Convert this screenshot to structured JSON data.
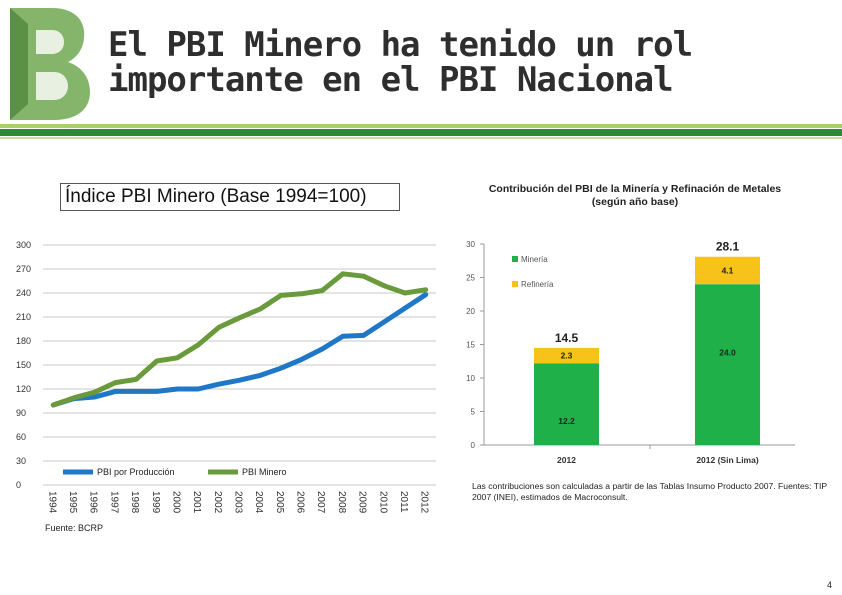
{
  "header": {
    "title_line1": "El PBI Minero ha tenido un rol",
    "title_line2": "importante en el PBI Nacional"
  },
  "colors": {
    "accent_green": "#7ab648",
    "dark_green": "#3d7a2a",
    "logo_green": "#5c9c3a",
    "blue": "#1f77c8",
    "minero_green": "#6a9a3c",
    "mineria_bar": "#1fb04a",
    "refineria_bar": "#f7c31a"
  },
  "chart_data": [
    {
      "type": "line",
      "title": "Índice PBI Minero (Base 1994=100)",
      "x": [
        "1994",
        "1995",
        "1996",
        "1997",
        "1998",
        "1999",
        "2000",
        "2001",
        "2002",
        "2003",
        "2004",
        "2005",
        "2006",
        "2007",
        "2008",
        "2009",
        "2010",
        "2011",
        "2012"
      ],
      "ylim": [
        0,
        300
      ],
      "yticks": [
        0,
        30,
        60,
        90,
        120,
        150,
        180,
        210,
        240,
        270,
        300
      ],
      "series": [
        {
          "name": "PBI por Producción",
          "color": "#1f77c8",
          "values": [
            100,
            108,
            110,
            117,
            117,
            117,
            120,
            120,
            126,
            131,
            137,
            146,
            157,
            170,
            186,
            187,
            204,
            221,
            238
          ]
        },
        {
          "name": "PBI Minero",
          "color": "#6a9a3c",
          "values": [
            100,
            109,
            116,
            128,
            132,
            155,
            159,
            175,
            197,
            209,
            220,
            237,
            239,
            243,
            264,
            261,
            249,
            240,
            244
          ]
        }
      ],
      "source": "Fuente: BCRP"
    },
    {
      "type": "bar",
      "stacked": true,
      "title_line1": "Contribución del PBI de la Minería y Refinación de Metales",
      "title_line2": "(según año base)",
      "categories": [
        "2012",
        "2012 (Sin Lima)"
      ],
      "ylim": [
        0,
        30
      ],
      "yticks": [
        0,
        5,
        10,
        15,
        20,
        25,
        30
      ],
      "series": [
        {
          "name": "Minería",
          "color": "#1fb04a",
          "values": [
            12.2,
            24.0
          ],
          "labels": [
            "12.2",
            "24.0"
          ]
        },
        {
          "name": "Refinería",
          "color": "#f7c31a",
          "values": [
            2.3,
            4.1
          ],
          "labels": [
            "2.3",
            "4.1"
          ]
        }
      ],
      "totals": [
        14.5,
        28.1
      ],
      "total_labels": [
        "14.5",
        "28.1"
      ],
      "note": "Las contribuciones son calculadas a partir de las Tablas Insumo Producto 2007. Fuentes: TIP 2007 (INEI), estimados de Macroconsult."
    }
  ],
  "footer": {
    "page_number": "4"
  }
}
